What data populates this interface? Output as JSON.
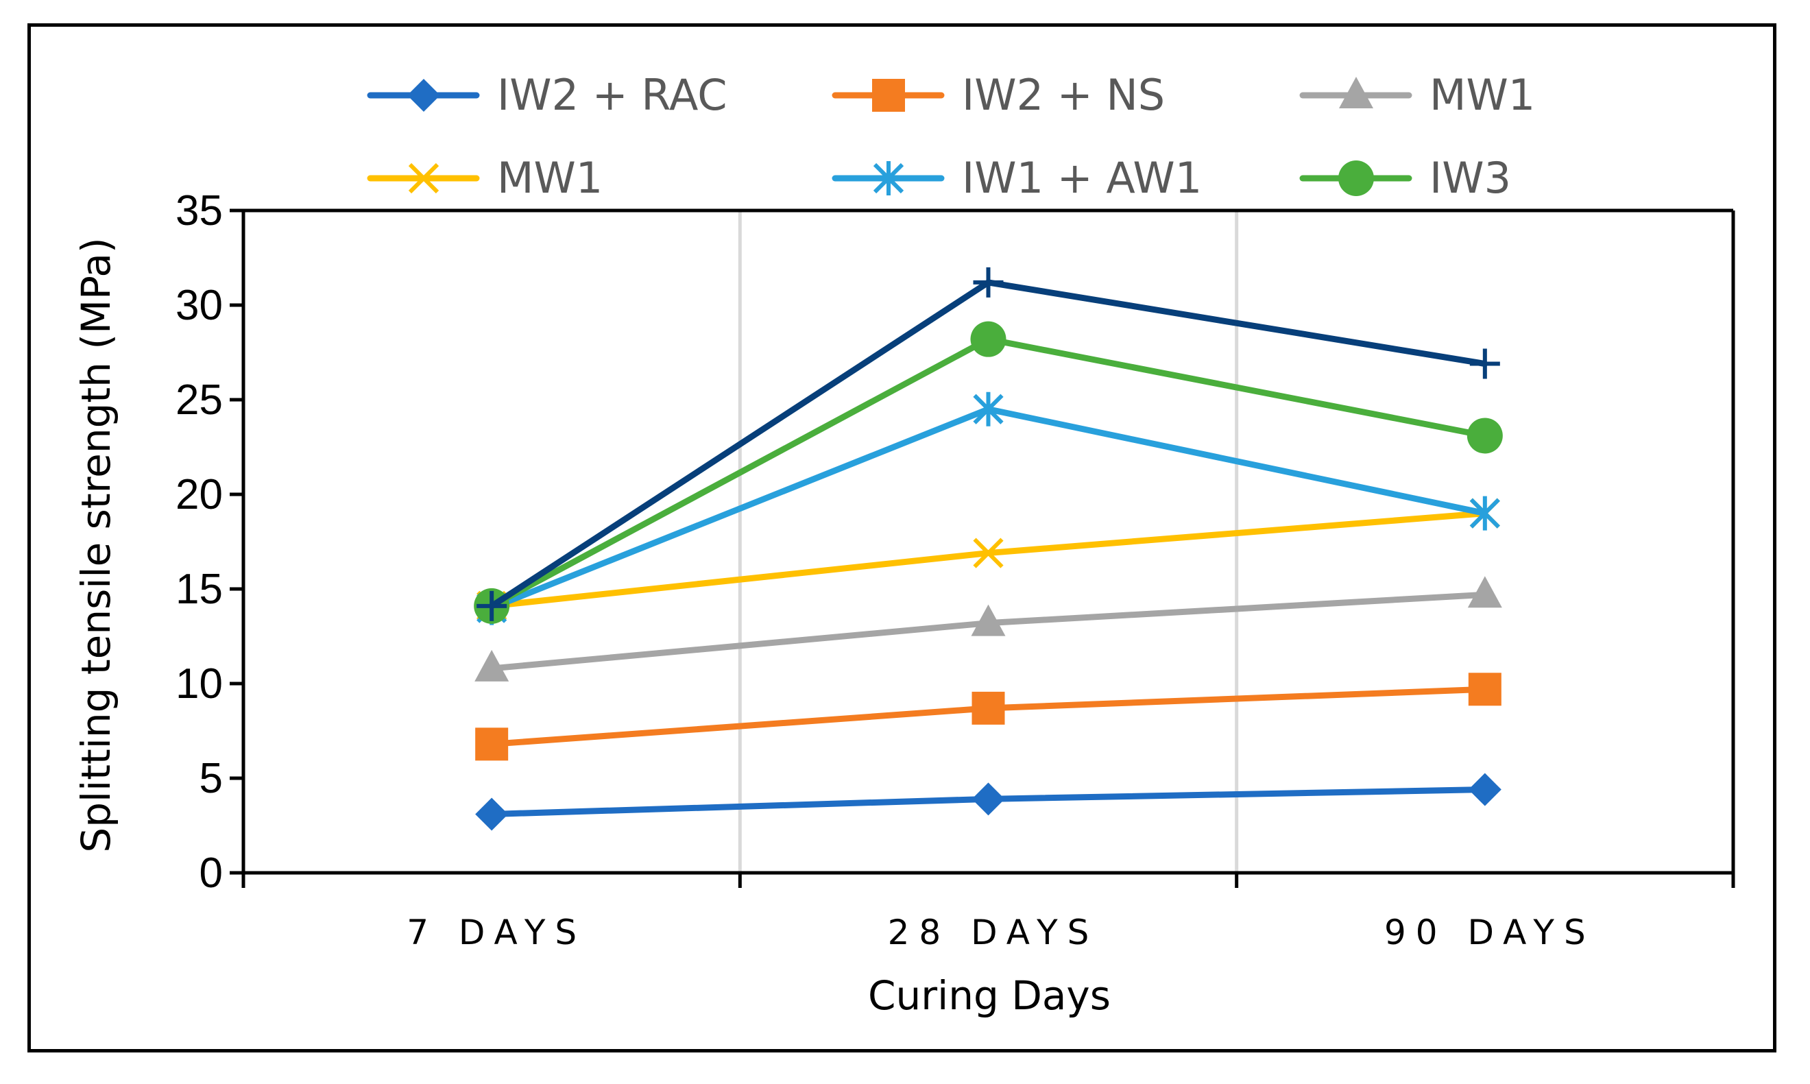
{
  "chart_data": {
    "type": "line",
    "title": "",
    "xlabel": "Curing Days",
    "ylabel": "Splitting tensile strength (MPa)",
    "categories": [
      "7 DAYS",
      "28 DAYS",
      "90 DAYS"
    ],
    "ylim": [
      0,
      35
    ],
    "yticks": [
      0,
      5,
      10,
      15,
      20,
      25,
      30,
      35
    ],
    "grid": "vertical category separators",
    "legend_position": "top",
    "series": [
      {
        "name": "IW2 + RAC",
        "values": [
          3.1,
          3.9,
          4.4
        ],
        "color": "#1f6dc4",
        "marker": "diamond",
        "in_legend": true
      },
      {
        "name": "IW2 + NS",
        "values": [
          6.8,
          8.7,
          9.7
        ],
        "color": "#f47c20",
        "marker": "square",
        "in_legend": true
      },
      {
        "name": "MW1",
        "values": [
          10.8,
          13.2,
          14.7
        ],
        "color": "#a5a5a5",
        "marker": "triangle",
        "in_legend": true
      },
      {
        "name": "MW1",
        "values": [
          14.1,
          16.9,
          19.0
        ],
        "color": "#ffc000",
        "marker": "x",
        "in_legend": true
      },
      {
        "name": "IW1 + AW1",
        "values": [
          14.0,
          24.5,
          19.0
        ],
        "color": "#28a0dc",
        "marker": "asterisk",
        "in_legend": true
      },
      {
        "name": "IW3",
        "values": [
          14.1,
          28.2,
          23.1
        ],
        "color": "#4aae3c",
        "marker": "circle",
        "in_legend": true
      },
      {
        "name": "",
        "values": [
          14.1,
          31.2,
          26.9
        ],
        "color": "#073f7a",
        "marker": "plus",
        "in_legend": false
      }
    ]
  }
}
